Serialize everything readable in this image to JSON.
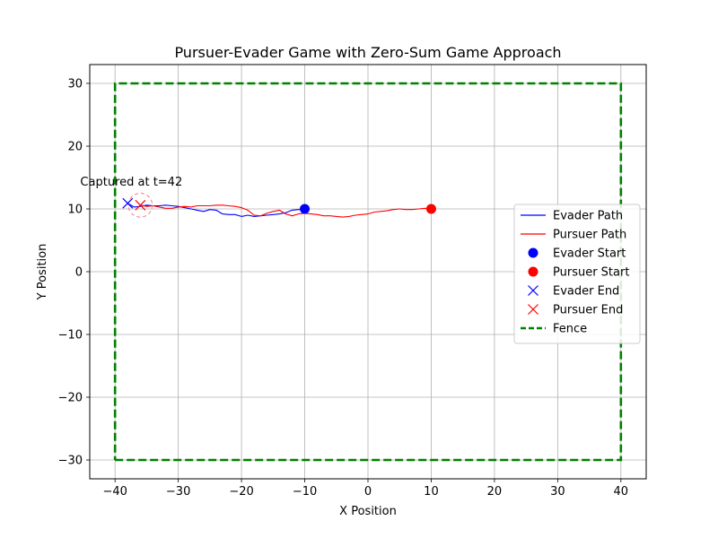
{
  "chart_data": {
    "type": "line",
    "title": "Pursuer-Evader Game with Zero-Sum Game Approach",
    "xlabel": "X Position",
    "ylabel": "Y Position",
    "xlim": [
      -44,
      44
    ],
    "ylim": [
      -33,
      33
    ],
    "x_ticks": [
      -40,
      -30,
      -20,
      -10,
      0,
      10,
      20,
      30,
      40
    ],
    "y_ticks": [
      -30,
      -20,
      -10,
      0,
      10,
      20,
      30
    ],
    "x_tick_labels": [
      "−40",
      "−30",
      "−20",
      "−10",
      "0",
      "10",
      "20",
      "30",
      "40"
    ],
    "y_tick_labels": [
      "−30",
      "−20",
      "−10",
      "0",
      "10",
      "20",
      "30"
    ],
    "grid": true,
    "legend_position": "center-right",
    "annotation": {
      "text": "Captured at t=42",
      "x": -45.5,
      "y": 13.7
    },
    "capture_circle": {
      "x": -36,
      "y": 10.6,
      "radius": 1.9,
      "color": "#f08080"
    },
    "series": [
      {
        "name": "Evader Path",
        "kind": "line",
        "color": "#0000ff",
        "x": [
          -10,
          -11,
          -12,
          -13,
          -14,
          -15,
          -16,
          -17,
          -18,
          -19,
          -20,
          -21,
          -22,
          -23,
          -24,
          -25,
          -26,
          -27,
          -28,
          -29,
          -30,
          -31,
          -32,
          -33,
          -34,
          -35,
          -36,
          -37,
          -38
        ],
        "y": [
          10.0,
          9.9,
          9.8,
          9.4,
          9.2,
          9.1,
          9.0,
          8.9,
          8.8,
          9.0,
          8.8,
          9.1,
          9.1,
          9.2,
          9.8,
          9.9,
          9.6,
          9.8,
          10.0,
          10.2,
          10.4,
          10.5,
          10.6,
          10.5,
          10.5,
          10.6,
          10.4,
          10.3,
          10.9
        ]
      },
      {
        "name": "Pursuer Path",
        "kind": "line",
        "color": "#ff0000",
        "x": [
          10,
          9,
          8,
          7,
          6,
          5,
          4,
          3,
          2,
          1,
          0,
          -1,
          -2,
          -3,
          -4,
          -5,
          -6,
          -7,
          -8,
          -9,
          -10,
          -11,
          -12,
          -13,
          -14,
          -15,
          -16,
          -17,
          -18,
          -19,
          -20,
          -21,
          -22,
          -23,
          -24,
          -25,
          -26,
          -27,
          -28,
          -29,
          -30,
          -31,
          -32,
          -33,
          -34,
          -35,
          -36
        ],
        "y": [
          10.0,
          10.1,
          10.0,
          9.9,
          9.9,
          10.0,
          9.9,
          9.7,
          9.6,
          9.5,
          9.2,
          9.1,
          9.0,
          8.8,
          8.7,
          8.8,
          8.9,
          8.9,
          9.1,
          9.2,
          9.3,
          9.2,
          8.9,
          9.2,
          9.8,
          9.6,
          9.3,
          8.9,
          9.0,
          9.8,
          10.2,
          10.4,
          10.5,
          10.6,
          10.6,
          10.5,
          10.5,
          10.5,
          10.3,
          10.4,
          10.3,
          10.1,
          10.1,
          10.3,
          10.5,
          10.4,
          10.6
        ]
      },
      {
        "name": "Evader Start",
        "kind": "marker-dot",
        "color": "#0000ff",
        "x": [
          -10
        ],
        "y": [
          10
        ]
      },
      {
        "name": "Pursuer Start",
        "kind": "marker-dot",
        "color": "#ff0000",
        "x": [
          10
        ],
        "y": [
          10
        ]
      },
      {
        "name": "Evader End",
        "kind": "marker-x",
        "color": "#0000ff",
        "x": [
          -38
        ],
        "y": [
          10.9
        ]
      },
      {
        "name": "Pursuer End",
        "kind": "marker-x",
        "color": "#ff0000",
        "x": [
          -36
        ],
        "y": [
          10.6
        ]
      },
      {
        "name": "Fence",
        "kind": "dashed-line",
        "color": "#008000",
        "x": [
          -40,
          40,
          40,
          -40,
          -40
        ],
        "y": [
          -30,
          -30,
          30,
          30,
          -30
        ]
      }
    ]
  }
}
